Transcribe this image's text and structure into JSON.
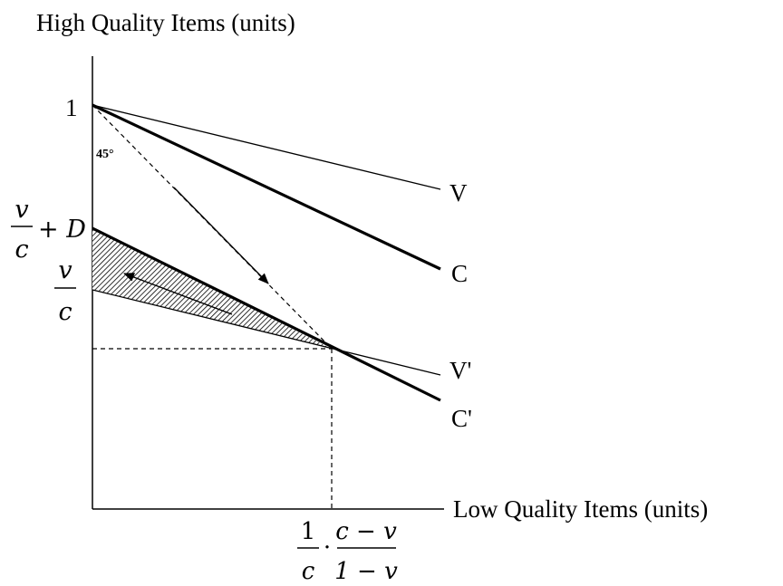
{
  "axes": {
    "y_title": "High Quality Items (units)",
    "x_title": "Low Quality Items (units)"
  },
  "y_ticks": {
    "one": "1",
    "v_over_c_plus_d": {
      "num": "v",
      "den": "c",
      "suffix": "+ D"
    },
    "v_over_c": {
      "num": "v",
      "den": "c"
    }
  },
  "x_tick": {
    "frac1": {
      "num": "1",
      "den": "c"
    },
    "dot": "·",
    "frac2": {
      "num": "c − v",
      "den": "1 − v"
    }
  },
  "angle_label": "45°",
  "line_labels": {
    "V": "V",
    "C": "C",
    "V_prime": "V'",
    "C_prime": "C'"
  },
  "colors": {
    "ink": "#000000",
    "background": "#ffffff"
  }
}
